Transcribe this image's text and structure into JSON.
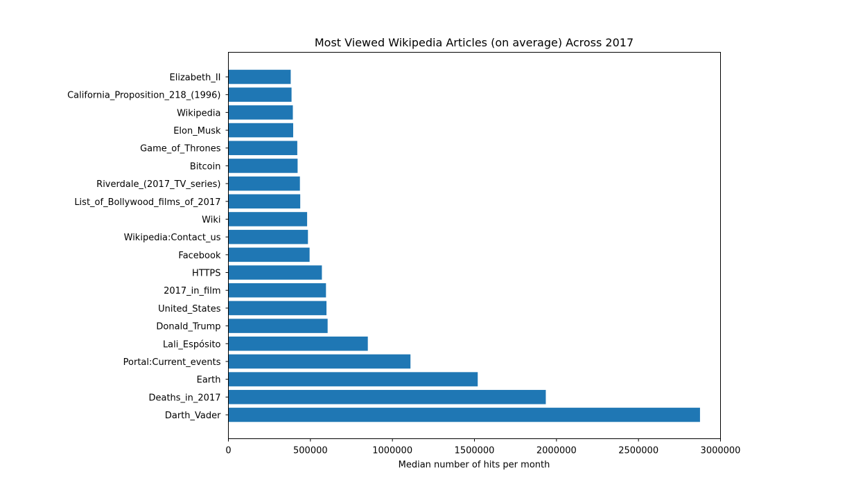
{
  "chart_data": {
    "type": "bar",
    "orientation": "horizontal",
    "title": "Most Viewed Wikipedia Articles (on average) Across 2017",
    "xlabel": "Median number of hits per month",
    "ylabel": "",
    "xlim": [
      0,
      3000000
    ],
    "xticks": [
      0,
      500000,
      1000000,
      1500000,
      2000000,
      2500000,
      3000000
    ],
    "xtick_labels": [
      "0",
      "500000",
      "1000000",
      "1500000",
      "2000000",
      "2500000",
      "3000000"
    ],
    "grid": false,
    "bar_color": "#1f77b4",
    "categories": [
      "Darth_Vader",
      "Deaths_in_2017",
      "Earth",
      "Portal:Current_events",
      "Lali_Espósito",
      "Donald_Trump",
      "United_States",
      "2017_in_film",
      "HTTPS",
      "Facebook",
      "Wikipedia:Contact_us",
      "Wiki",
      "List_of_Bollywood_films_of_2017",
      "Riverdale_(2017_TV_series)",
      "Bitcoin",
      "Game_of_Thrones",
      "Elon_Musk",
      "Wikipedia",
      "California_Proposition_218_(1996)",
      "Elizabeth_II"
    ],
    "values": [
      2875000,
      1935000,
      1520000,
      1110000,
      850000,
      605000,
      598000,
      595000,
      570000,
      495000,
      485000,
      480000,
      438000,
      436000,
      422000,
      420000,
      395000,
      393000,
      385000,
      380000
    ]
  }
}
